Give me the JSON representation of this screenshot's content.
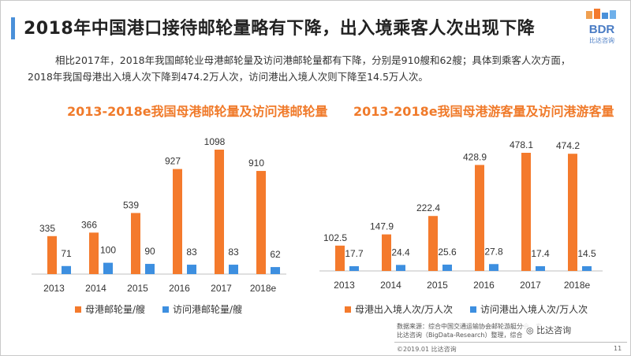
{
  "header": {
    "title": "2018年中国港口接待邮轮量略有下降，出入境乘客人次出现下降",
    "logo_text": "BDR",
    "logo_sub": "比达咨询"
  },
  "summary": {
    "line1": "相比2017年，2018年我国邮轮业母港邮轮量及访问港邮轮量都有下降，分别是910艘和62艘；具体到乘客人次方面，",
    "line2": "2018年我国母港出入境人次下降到474.2万人次，访问港出入境人次则下降至14.5万人次。"
  },
  "colors": {
    "orange": "#f47a2c",
    "blue": "#3d8fe0",
    "axis": "#bfbfbf"
  },
  "chart_data": [
    {
      "type": "bar",
      "title": "2013-2018e我国母港邮轮量及访问港邮轮量",
      "categories": [
        "2013",
        "2014",
        "2015",
        "2016",
        "2017",
        "2018e"
      ],
      "series": [
        {
          "name": "母港邮轮量/艘",
          "values": [
            335,
            366,
            539,
            927,
            1098,
            910
          ]
        },
        {
          "name": "访问港邮轮量/艘",
          "values": [
            71,
            100,
            90,
            83,
            83,
            62
          ]
        }
      ],
      "ylim": [
        0,
        1098
      ],
      "grid": false,
      "legend": "bottom"
    },
    {
      "type": "bar",
      "title": "2013-2018e我国母港游客量及访问港游客量",
      "categories": [
        "2013",
        "2014",
        "2015",
        "2016",
        "2017",
        "2018e"
      ],
      "series": [
        {
          "name": "母港出入境人次/万人次",
          "values": [
            102.5,
            147.9,
            222.4,
            428.9,
            478.1,
            474.2
          ]
        },
        {
          "name": "访问港出入境人次/万人次",
          "values": [
            17.7,
            24.4,
            25.6,
            27.8,
            17.4,
            14.5
          ]
        }
      ],
      "ylim": [
        0,
        478.1
      ],
      "grid": false,
      "legend": "bottom"
    }
  ],
  "source": {
    "line1": "数据来源：综合中国交通运输协会邮轮游艇分会，专",
    "line2": "比达咨询（BigData-Research）整理，综合"
  },
  "watermark": "比达咨询",
  "footer": {
    "copyright": "©2019.01  比达咨询",
    "page": "11"
  }
}
